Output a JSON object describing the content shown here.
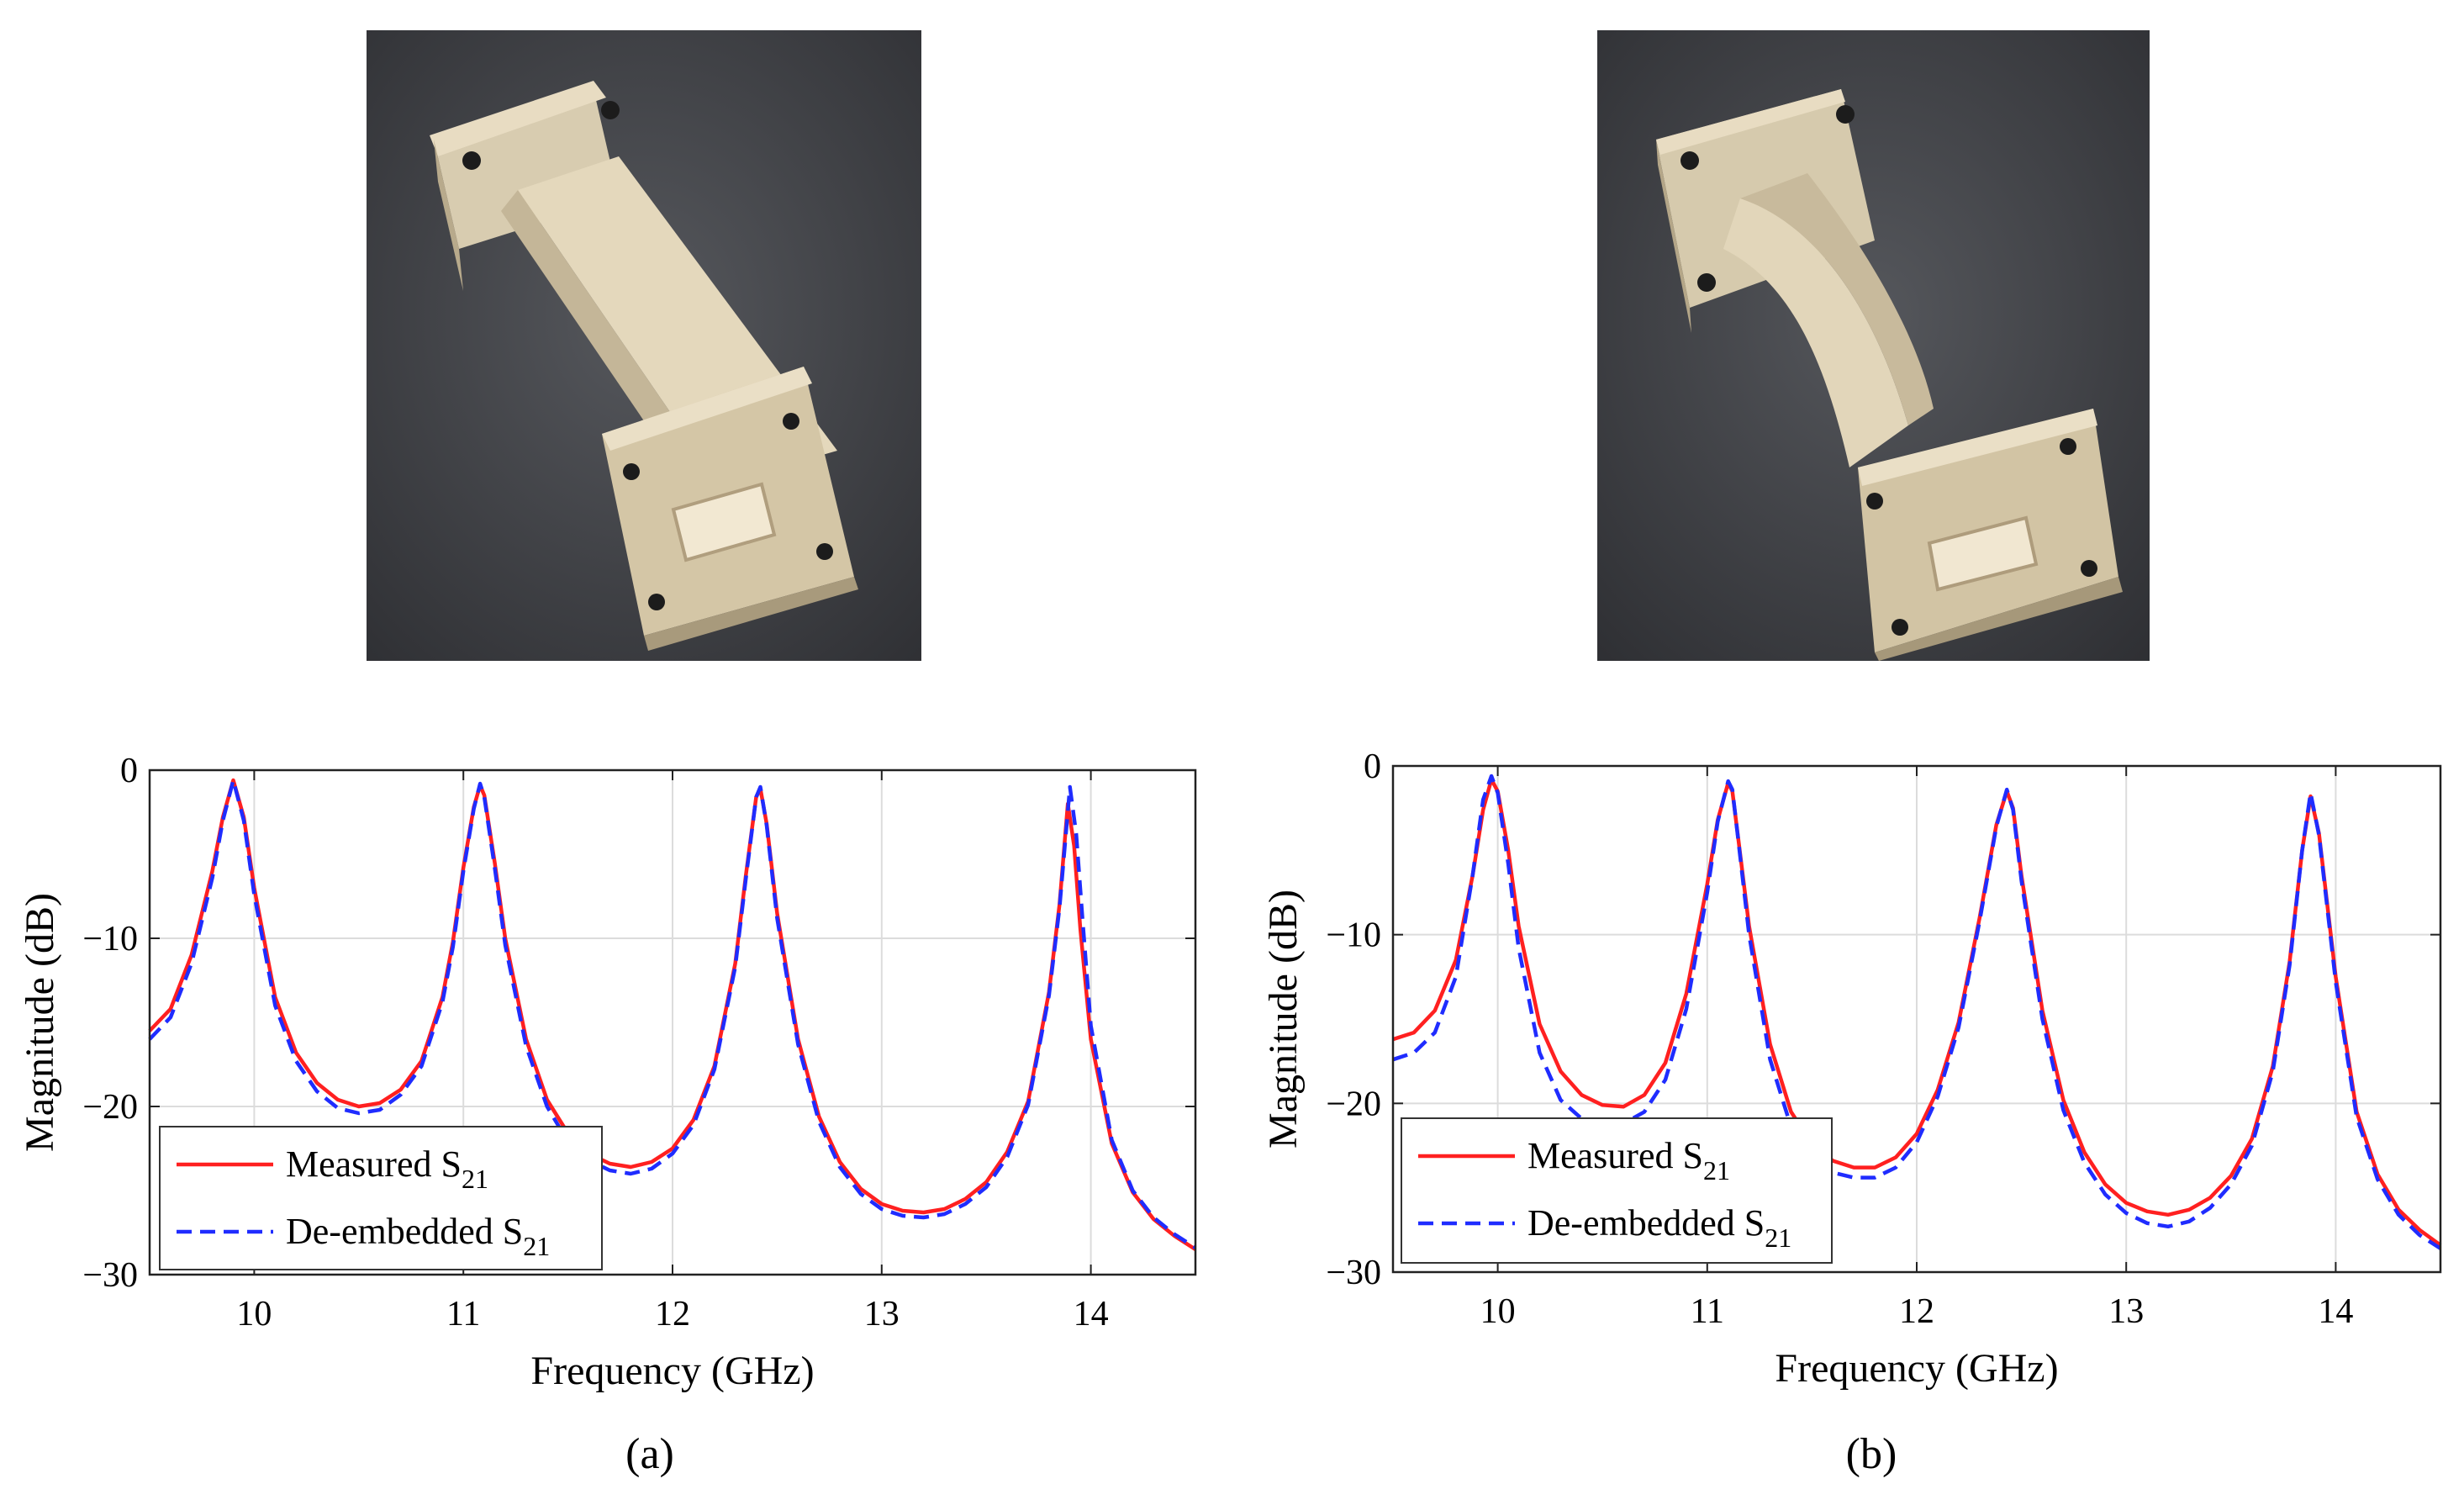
{
  "panels": [
    {
      "caption": "(a)",
      "photo_icon": "waveguide-straight-photo"
    },
    {
      "caption": "(b)",
      "photo_icon": "waveguide-twisted-photo"
    }
  ],
  "colors": {
    "measured": "#ff2020",
    "deembedded": "#1f2cff",
    "grid": "#dcdcdc",
    "axis": "#222222"
  },
  "chart_data": [
    {
      "type": "line",
      "title": "",
      "xlabel": "Frequency (GHz)",
      "ylabel": "Magnitude (dB)",
      "xlim": [
        9.5,
        14.5
      ],
      "ylim": [
        -30,
        0
      ],
      "xticks": [
        10,
        11,
        12,
        13,
        14
      ],
      "yticks": [
        0,
        -10,
        -20,
        -30
      ],
      "grid": true,
      "legend": "bottom-left",
      "series": [
        {
          "name": "Measured S21",
          "label_main": "Measured S",
          "label_sub": "21",
          "style": "solid",
          "x": [
            9.5,
            9.6,
            9.7,
            9.8,
            9.85,
            9.9,
            9.95,
            10.0,
            10.1,
            10.2,
            10.3,
            10.4,
            10.5,
            10.6,
            10.7,
            10.8,
            10.9,
            10.95,
            11.0,
            11.05,
            11.08,
            11.1,
            11.15,
            11.2,
            11.3,
            11.4,
            11.5,
            11.6,
            11.7,
            11.8,
            11.9,
            12.0,
            12.1,
            12.2,
            12.3,
            12.35,
            12.4,
            12.42,
            12.45,
            12.5,
            12.6,
            12.7,
            12.8,
            12.9,
            13.0,
            13.1,
            13.2,
            13.3,
            13.4,
            13.5,
            13.6,
            13.7,
            13.8,
            13.85,
            13.89,
            13.92,
            13.95,
            14.0,
            14.1,
            14.2,
            14.3,
            14.4,
            14.5
          ],
          "y": [
            -15.5,
            -14.2,
            -11.0,
            -6.0,
            -2.8,
            -0.6,
            -2.8,
            -7.0,
            -13.5,
            -16.8,
            -18.6,
            -19.6,
            -20.0,
            -19.8,
            -19.0,
            -17.3,
            -13.5,
            -10.2,
            -5.8,
            -2.2,
            -0.9,
            -1.5,
            -5.5,
            -10.0,
            -16.0,
            -19.6,
            -21.6,
            -22.8,
            -23.4,
            -23.6,
            -23.3,
            -22.5,
            -20.8,
            -17.6,
            -11.5,
            -6.3,
            -1.6,
            -1.1,
            -3.2,
            -8.5,
            -16.0,
            -20.6,
            -23.3,
            -24.9,
            -25.8,
            -26.2,
            -26.3,
            -26.1,
            -25.5,
            -24.5,
            -22.7,
            -19.7,
            -13.2,
            -8.0,
            -2.0,
            -4.5,
            -9.5,
            -16.0,
            -22.2,
            -25.1,
            -26.7,
            -27.7,
            -28.5
          ]
        },
        {
          "name": "De-embedded S21",
          "label_main": "De-embedded S",
          "label_sub": "21",
          "style": "dashed",
          "x": [
            9.5,
            9.6,
            9.7,
            9.8,
            9.85,
            9.9,
            9.95,
            10.0,
            10.1,
            10.2,
            10.3,
            10.4,
            10.5,
            10.6,
            10.7,
            10.8,
            10.9,
            10.95,
            11.0,
            11.05,
            11.08,
            11.1,
            11.15,
            11.2,
            11.3,
            11.4,
            11.5,
            11.6,
            11.7,
            11.8,
            11.9,
            12.0,
            12.1,
            12.2,
            12.3,
            12.35,
            12.4,
            12.42,
            12.45,
            12.5,
            12.6,
            12.7,
            12.8,
            12.9,
            13.0,
            13.1,
            13.2,
            13.3,
            13.4,
            13.5,
            13.6,
            13.7,
            13.8,
            13.85,
            13.9,
            13.93,
            13.96,
            14.0,
            14.1,
            14.2,
            14.3,
            14.4,
            14.5
          ],
          "y": [
            -16.0,
            -14.7,
            -11.5,
            -6.4,
            -3.0,
            -0.6,
            -3.0,
            -7.4,
            -14.0,
            -17.3,
            -19.1,
            -20.1,
            -20.4,
            -20.2,
            -19.3,
            -17.6,
            -13.8,
            -10.5,
            -6.0,
            -2.3,
            -0.8,
            -1.6,
            -5.8,
            -10.4,
            -16.4,
            -20.0,
            -22.1,
            -23.2,
            -23.8,
            -24.0,
            -23.7,
            -22.8,
            -21.1,
            -17.8,
            -11.7,
            -6.5,
            -1.6,
            -1.0,
            -3.3,
            -8.8,
            -16.3,
            -20.9,
            -23.6,
            -25.2,
            -26.1,
            -26.5,
            -26.6,
            -26.4,
            -25.8,
            -24.8,
            -23.0,
            -19.9,
            -13.4,
            -8.2,
            -1.0,
            -3.8,
            -8.8,
            -15.2,
            -22.0,
            -25.0,
            -26.6,
            -27.6,
            -28.4
          ]
        }
      ]
    },
    {
      "type": "line",
      "title": "",
      "xlabel": "Frequency (GHz)",
      "ylabel": "Magnitude (dB)",
      "xlim": [
        9.5,
        14.5
      ],
      "ylim": [
        -30,
        0
      ],
      "xticks": [
        10,
        11,
        12,
        13,
        14
      ],
      "yticks": [
        0,
        -10,
        -20,
        -30
      ],
      "grid": true,
      "legend": "bottom-left",
      "series": [
        {
          "name": "Measured S21",
          "label_main": "Measured S",
          "label_sub": "21",
          "style": "solid",
          "x": [
            9.5,
            9.6,
            9.7,
            9.8,
            9.88,
            9.93,
            9.97,
            10.0,
            10.05,
            10.1,
            10.2,
            10.3,
            10.4,
            10.5,
            10.6,
            10.7,
            10.8,
            10.9,
            11.0,
            11.05,
            11.1,
            11.12,
            11.15,
            11.2,
            11.3,
            11.4,
            11.5,
            11.6,
            11.7,
            11.8,
            11.9,
            12.0,
            12.1,
            12.2,
            12.3,
            12.38,
            12.43,
            12.46,
            12.5,
            12.6,
            12.7,
            12.8,
            12.9,
            13.0,
            13.1,
            13.2,
            13.3,
            13.4,
            13.5,
            13.6,
            13.7,
            13.78,
            13.84,
            13.88,
            13.92,
            14.0,
            14.1,
            14.2,
            14.3,
            14.4,
            14.5
          ],
          "y": [
            -16.2,
            -15.8,
            -14.5,
            -11.5,
            -6.5,
            -2.6,
            -0.8,
            -1.5,
            -5.0,
            -9.5,
            -15.3,
            -18.1,
            -19.5,
            -20.1,
            -20.2,
            -19.5,
            -17.6,
            -13.5,
            -7.0,
            -3.2,
            -1.0,
            -1.5,
            -4.5,
            -9.5,
            -16.5,
            -20.5,
            -22.4,
            -23.4,
            -23.8,
            -23.8,
            -23.2,
            -21.8,
            -19.2,
            -15.2,
            -9.0,
            -3.5,
            -1.5,
            -2.5,
            -6.5,
            -14.5,
            -19.8,
            -22.9,
            -24.8,
            -25.9,
            -26.4,
            -26.6,
            -26.3,
            -25.6,
            -24.3,
            -22.1,
            -17.8,
            -11.6,
            -5.0,
            -1.8,
            -4.0,
            -12.5,
            -20.5,
            -24.2,
            -26.3,
            -27.5,
            -28.4
          ]
        },
        {
          "name": "De-embedded S21",
          "label_main": "De-embedded S",
          "label_sub": "21",
          "style": "dashed",
          "x": [
            9.5,
            9.6,
            9.7,
            9.8,
            9.88,
            9.93,
            9.97,
            10.0,
            10.05,
            10.1,
            10.2,
            10.3,
            10.4,
            10.5,
            10.6,
            10.7,
            10.8,
            10.9,
            11.0,
            11.05,
            11.1,
            11.12,
            11.15,
            11.2,
            11.3,
            11.4,
            11.5,
            11.6,
            11.7,
            11.8,
            11.9,
            12.0,
            12.1,
            12.2,
            12.3,
            12.38,
            12.43,
            12.46,
            12.5,
            12.6,
            12.7,
            12.8,
            12.9,
            13.0,
            13.1,
            13.2,
            13.3,
            13.4,
            13.5,
            13.6,
            13.7,
            13.78,
            13.84,
            13.88,
            13.92,
            14.0,
            14.1,
            14.2,
            14.3,
            14.4,
            14.5
          ],
          "y": [
            -17.4,
            -17.0,
            -15.8,
            -12.5,
            -6.5,
            -2.0,
            -0.6,
            -1.6,
            -5.8,
            -10.8,
            -17.0,
            -19.8,
            -20.9,
            -21.2,
            -21.2,
            -20.5,
            -18.6,
            -14.4,
            -7.5,
            -3.3,
            -0.9,
            -1.4,
            -4.6,
            -10.0,
            -17.4,
            -21.4,
            -23.2,
            -24.1,
            -24.4,
            -24.4,
            -23.8,
            -22.3,
            -19.6,
            -15.5,
            -9.2,
            -3.6,
            -1.4,
            -2.6,
            -6.8,
            -15.0,
            -20.4,
            -23.5,
            -25.4,
            -26.5,
            -27.1,
            -27.3,
            -27.0,
            -26.2,
            -24.8,
            -22.5,
            -18.1,
            -11.8,
            -5.0,
            -1.6,
            -4.1,
            -12.8,
            -20.8,
            -24.5,
            -26.6,
            -27.8,
            -28.6
          ]
        }
      ]
    }
  ]
}
